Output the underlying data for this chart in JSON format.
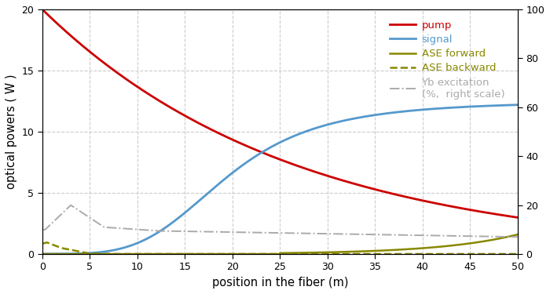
{
  "xlabel": "position in the fiber (m)",
  "ylabel": "optical powers ( W )",
  "xlim": [
    0,
    50
  ],
  "ylim_left": [
    0,
    20
  ],
  "ylim_right": [
    0,
    100
  ],
  "x_ticks": [
    0,
    5,
    10,
    15,
    20,
    25,
    30,
    35,
    40,
    45,
    50
  ],
  "y_ticks_left": [
    0,
    5,
    10,
    15,
    20
  ],
  "y_ticks_right": [
    0,
    20,
    40,
    60,
    80,
    100
  ],
  "colors": {
    "pump": "#cc0000",
    "signal": "#5599cc",
    "ase_forward": "#888800",
    "ase_backward": "#888800",
    "yb": "#aaaaaa"
  },
  "legend_labels": {
    "pump": "pump",
    "signal": "signal",
    "ase_forward": "ASE forward",
    "ase_backward": "ASE backward",
    "yb": "Yb excitation\n(%,  right scale)"
  },
  "background_color": "#ffffff",
  "grid_color": "#cccccc"
}
